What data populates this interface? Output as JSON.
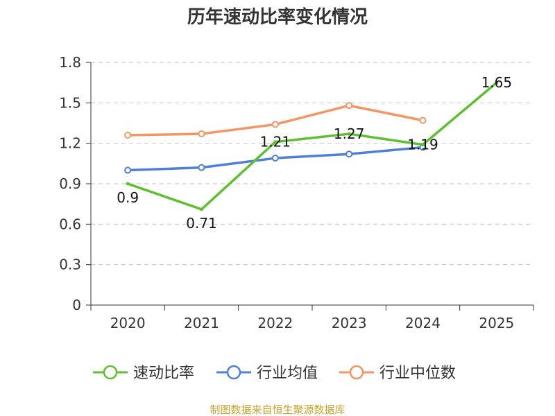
{
  "chart_data": {
    "type": "line",
    "title": "历年速动比率变化情况",
    "categories": [
      "2020",
      "2021",
      "2022",
      "2023",
      "2024",
      "2025"
    ],
    "y_ticks": [
      "0",
      "0.3",
      "0.6",
      "0.9",
      "1.2",
      "1.5",
      "1.8"
    ],
    "ylim": [
      0,
      1.8
    ],
    "grid": "horizontal dashed",
    "legend_position": "bottom",
    "series": [
      {
        "name": "速动比率",
        "color": "#5dc12f",
        "values": [
          0.9,
          0.71,
          1.21,
          1.27,
          1.19,
          1.65
        ],
        "labels": [
          "0.9",
          "0.71",
          "1.21",
          "1.27",
          "1.19",
          "1.65"
        ]
      },
      {
        "name": "行业均值",
        "color": "#4e7fdb",
        "values": [
          1.0,
          1.02,
          1.09,
          1.12,
          1.17,
          null
        ]
      },
      {
        "name": "行业中位数",
        "color": "#f49562",
        "values": [
          1.26,
          1.27,
          1.34,
          1.48,
          1.37,
          null
        ]
      }
    ]
  },
  "footer": {
    "source": "制图数据来自恒生聚源数据库"
  }
}
